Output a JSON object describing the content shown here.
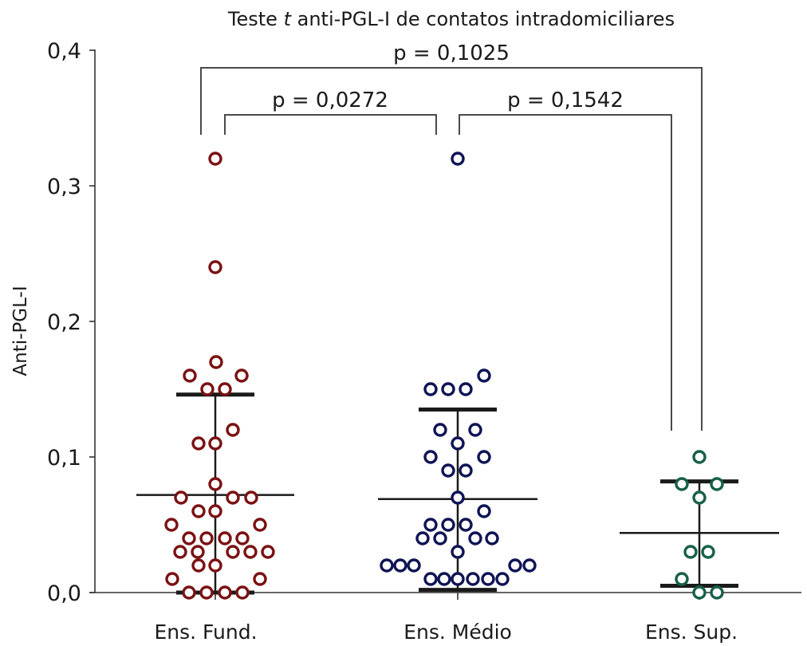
{
  "chart_data": {
    "type": "scatter",
    "subtype": "dot-plot-with-mean-sd",
    "title_prefix": "Teste ",
    "title_italic": "t",
    "title_suffix": " anti-PGL-I de contatos intradomiciliares",
    "xlabel": "",
    "ylabel": "Anti-PGL-I",
    "ylim": [
      0,
      0.4
    ],
    "yticks": [
      0,
      0.1,
      0.2,
      0.3,
      0.4
    ],
    "ytick_labels": [
      "0,0",
      "0,1",
      "0,2",
      "0,3",
      "0,4"
    ],
    "grid": false,
    "categories": [
      "Ens. Fund.",
      "Ens. Médio",
      "Ens. Sup."
    ],
    "series": [
      {
        "name": "Ens. Fund.",
        "color": "#7b1113",
        "values": [
          0.32,
          0.24,
          0.17,
          0.16,
          0.16,
          0.15,
          0.15,
          0.12,
          0.11,
          0.11,
          0.08,
          0.07,
          0.07,
          0.07,
          0.06,
          0.06,
          0.05,
          0.05,
          0.04,
          0.04,
          0.04,
          0.04,
          0.03,
          0.03,
          0.03,
          0.03,
          0.03,
          0.02,
          0.02,
          0.01,
          0.01,
          0.0,
          0.0,
          0.0,
          0.0
        ],
        "mean": 0.072,
        "sd_upper": 0.146,
        "sd_lower": 0.0
      },
      {
        "name": "Ens. Médio",
        "color": "#0f1455",
        "values": [
          0.32,
          0.16,
          0.15,
          0.15,
          0.15,
          0.12,
          0.12,
          0.11,
          0.1,
          0.1,
          0.09,
          0.09,
          0.07,
          0.06,
          0.05,
          0.05,
          0.05,
          0.04,
          0.04,
          0.04,
          0.04,
          0.03,
          0.02,
          0.02,
          0.02,
          0.02,
          0.02,
          0.01,
          0.01,
          0.01,
          0.01,
          0.01,
          0.01
        ],
        "mean": 0.069,
        "sd_upper": 0.135,
        "sd_lower": 0.002
      },
      {
        "name": "Ens. Sup.",
        "color": "#17604a",
        "values": [
          0.1,
          0.08,
          0.08,
          0.07,
          0.03,
          0.03,
          0.01,
          0.0,
          0.0
        ],
        "mean": 0.044,
        "sd_upper": 0.082,
        "sd_lower": 0.005
      }
    ],
    "annotations": [
      {
        "type": "bracket",
        "from": "Ens. Fund.",
        "to": "Ens. Sup.",
        "label": "p = 0,1025"
      },
      {
        "type": "bracket",
        "from": "Ens. Fund.",
        "to": "Ens. Médio",
        "label": "p = 0,0272"
      },
      {
        "type": "bracket",
        "from": "Ens. Médio",
        "to": "Ens. Sup.",
        "label": "p = 0,1542"
      }
    ]
  }
}
